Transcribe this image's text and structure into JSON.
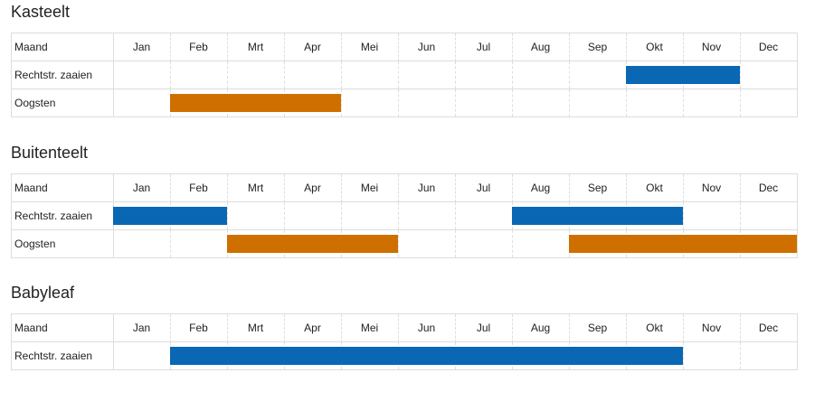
{
  "sections": [
    {
      "title": "Kasteelt",
      "header_label": "Maand",
      "months": [
        "Jan",
        "Feb",
        "Mrt",
        "Apr",
        "Mei",
        "Jun",
        "Jul",
        "Aug",
        "Sep",
        "Okt",
        "Nov",
        "Dec"
      ],
      "rows": [
        {
          "label": "Rechtstr. zaaien",
          "color": "#0a67b3",
          "bars": [
            {
              "start": 10,
              "end": 11
            }
          ]
        },
        {
          "label": "Oogsten",
          "color": "#cf6f00",
          "bars": [
            {
              "start": 2,
              "end": 4
            }
          ]
        }
      ]
    },
    {
      "title": "Buitenteelt",
      "header_label": "Maand",
      "months": [
        "Jan",
        "Feb",
        "Mrt",
        "Apr",
        "Mei",
        "Jun",
        "Jul",
        "Aug",
        "Sep",
        "Okt",
        "Nov",
        "Dec"
      ],
      "rows": [
        {
          "label": "Rechtstr. zaaien",
          "color": "#0a67b3",
          "bars": [
            {
              "start": 1,
              "end": 2
            },
            {
              "start": 8,
              "end": 10
            }
          ]
        },
        {
          "label": "Oogsten",
          "color": "#cf6f00",
          "bars": [
            {
              "start": 3,
              "end": 5
            },
            {
              "start": 9,
              "end": 12
            }
          ]
        }
      ]
    },
    {
      "title": "Babyleaf",
      "header_label": "Maand",
      "months": [
        "Jan",
        "Feb",
        "Mrt",
        "Apr",
        "Mei",
        "Jun",
        "Jul",
        "Aug",
        "Sep",
        "Okt",
        "Nov",
        "Dec"
      ],
      "rows": [
        {
          "label": "Rechtstr. zaaien",
          "color": "#0a67b3",
          "bars": [
            {
              "start": 2,
              "end": 10
            }
          ]
        }
      ]
    }
  ]
}
